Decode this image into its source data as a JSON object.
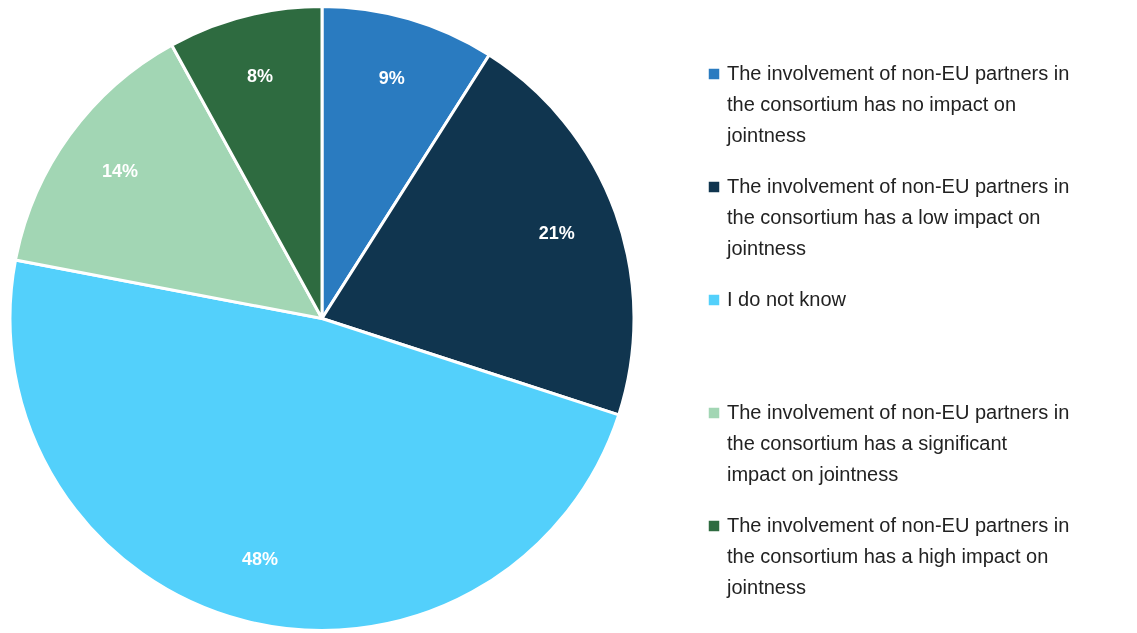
{
  "chart_data": {
    "type": "pie",
    "categories": [
      "The involvement of non-EU partners in the consortium has no impact on jointness",
      "The involvement of non-EU partners in the consortium has a low impact on jointness",
      "I do not know",
      "The involvement of non-EU partners in the consortium has a significant impact on jointness",
      "The involvement of non-EU partners in the consortium has a high impact on jointness"
    ],
    "values": [
      9,
      21,
      48,
      14,
      8
    ],
    "value_labels": [
      "9%",
      "21%",
      "48%",
      "14%",
      "8%"
    ],
    "colors": [
      "#2a7bc0",
      "#10354f",
      "#53d0fb",
      "#a2d6b4",
      "#2e6b40"
    ],
    "legend": "right"
  }
}
